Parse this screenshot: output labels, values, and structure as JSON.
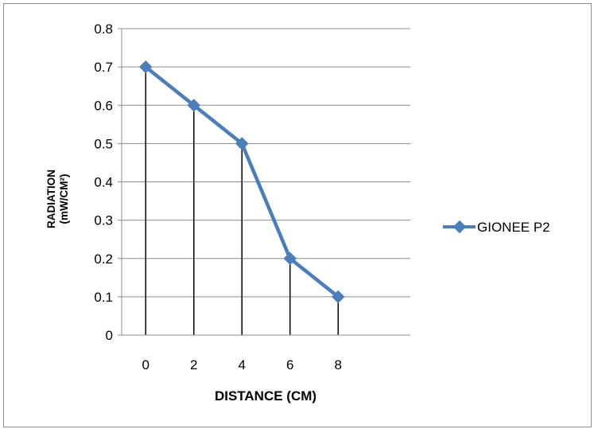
{
  "chart_data": {
    "type": "line",
    "title": "",
    "xlabel": "DISTANCE (CM)",
    "ylabel": [
      "RADIATION",
      "(mW/CM²)"
    ],
    "categories": [
      "0",
      "2",
      "4",
      "6",
      "8"
    ],
    "series": [
      {
        "name": "GIONEE P2",
        "values": [
          0.7,
          0.6,
          0.5,
          0.2,
          0.1
        ],
        "color": "#4a7ebb"
      }
    ],
    "ylim": [
      0,
      0.8
    ],
    "yticks": [
      "0",
      "0.1",
      "0.2",
      "0.3",
      "0.4",
      "0.5",
      "0.6",
      "0.7",
      "0.8"
    ],
    "grid": true,
    "drop_lines": true,
    "legend_position": "right",
    "marker": "diamond"
  }
}
